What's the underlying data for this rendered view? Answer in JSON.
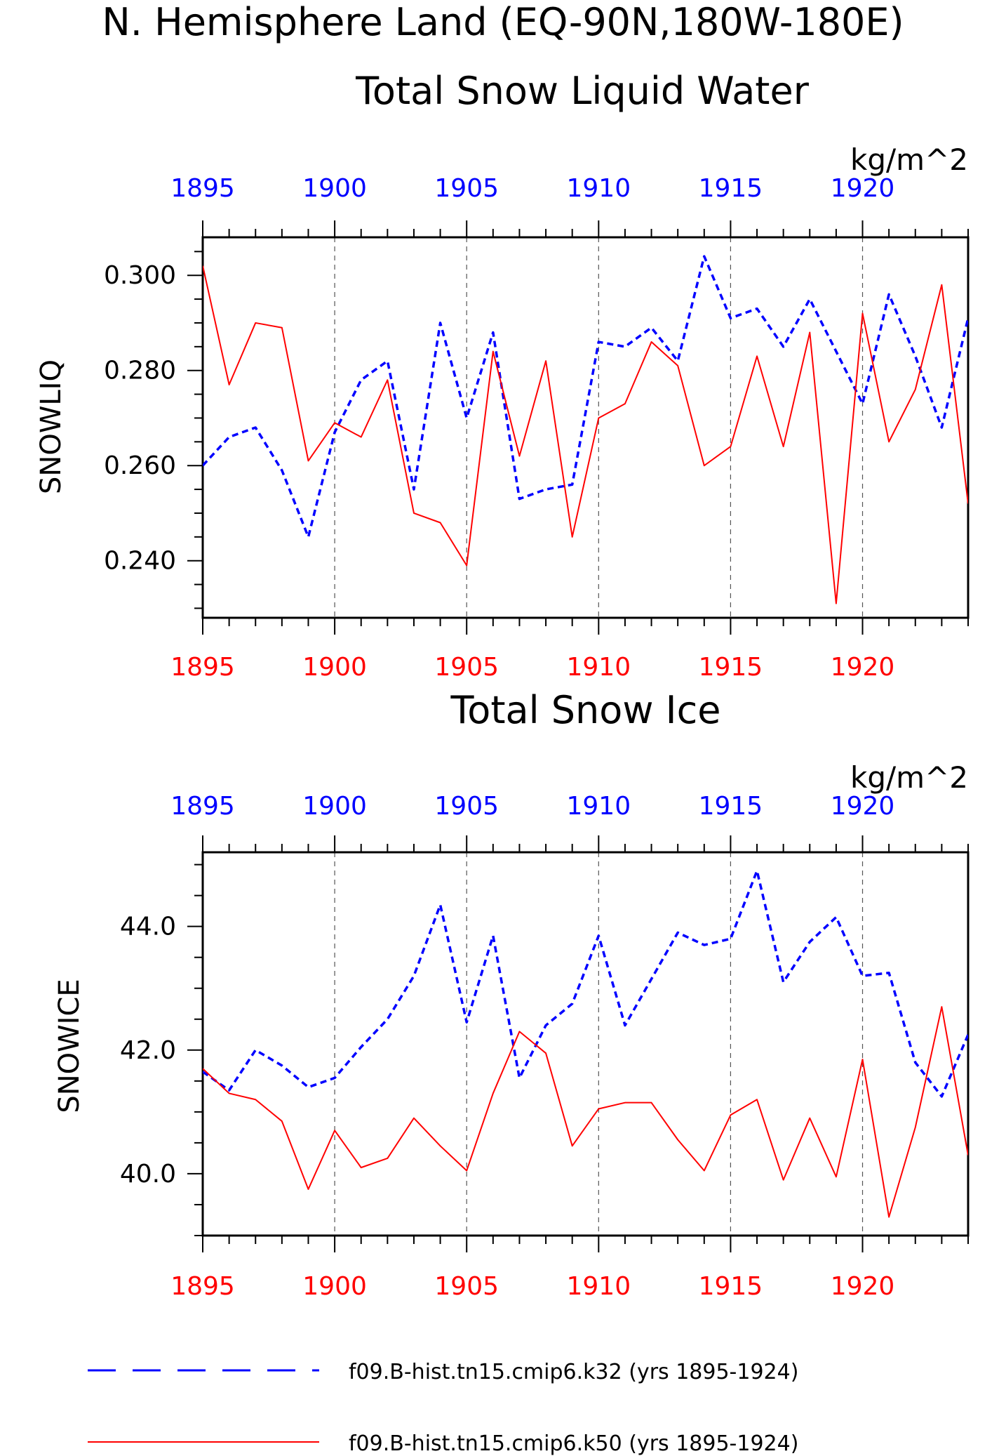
{
  "figure": {
    "title_line1": "N. Hemisphere Land (EQ-90N,180W-180E)"
  },
  "colors": {
    "series1": "#0000ff",
    "series2": "#ff0000",
    "axis": "#000000",
    "grid": "#555555"
  },
  "legend": {
    "entries": [
      {
        "label": "f09.B-hist.tn15.cmip6.k32 (yrs 1895-1924)",
        "color": "#0000ff",
        "style": "dashed"
      },
      {
        "label": "f09.B-hist.tn15.cmip6.k50 (yrs 1895-1924)",
        "color": "#ff0000",
        "style": "solid"
      }
    ]
  },
  "chart_data": [
    {
      "type": "line",
      "title": "Total Snow Liquid Water",
      "units": "kg/m^2",
      "ylabel": "SNOWLIQ",
      "xlim": [
        1895,
        1924
      ],
      "ylim": [
        0.228,
        0.308
      ],
      "yticks": [
        "0.240",
        "0.260",
        "0.280",
        "0.300"
      ],
      "yticks_values": [
        0.24,
        0.26,
        0.28,
        0.3
      ],
      "xticks_top": [
        "1895",
        "1900",
        "1905",
        "1910",
        "1915",
        "1920"
      ],
      "xticks_bottom": [
        "1895",
        "1900",
        "1905",
        "1910",
        "1915",
        "1920"
      ],
      "xticks_values": [
        1895,
        1900,
        1905,
        1910,
        1915,
        1920
      ],
      "grid": "vertical dashed at major x ticks",
      "x": [
        1895,
        1896,
        1897,
        1898,
        1899,
        1900,
        1901,
        1902,
        1903,
        1904,
        1905,
        1906,
        1907,
        1908,
        1909,
        1910,
        1911,
        1912,
        1913,
        1914,
        1915,
        1916,
        1917,
        1918,
        1919,
        1920,
        1921,
        1922,
        1923,
        1924
      ],
      "series": [
        {
          "values": [
            0.26,
            0.266,
            0.268,
            0.259,
            0.245,
            0.267,
            0.278,
            0.282,
            0.255,
            0.29,
            0.27,
            0.288,
            0.253,
            0.255,
            0.256,
            0.286,
            0.285,
            0.289,
            0.282,
            0.304,
            0.291,
            0.293,
            0.285,
            0.295,
            0.284,
            0.273,
            0.296,
            0.283,
            0.268,
            0.291
          ]
        },
        {
          "values": [
            0.302,
            0.277,
            0.29,
            0.289,
            0.261,
            0.269,
            0.266,
            0.278,
            0.25,
            0.248,
            0.239,
            0.284,
            0.262,
            0.282,
            0.245,
            0.27,
            0.273,
            0.286,
            0.281,
            0.26,
            0.264,
            0.283,
            0.264,
            0.288,
            0.231,
            0.292,
            0.265,
            0.276,
            0.298,
            0.252
          ]
        }
      ]
    },
    {
      "type": "line",
      "title": "Total Snow Ice",
      "units": "kg/m^2",
      "ylabel": "SNOWICE",
      "xlim": [
        1895,
        1924
      ],
      "ylim": [
        39.0,
        45.2
      ],
      "yticks": [
        "40.0",
        "42.0",
        "44.0"
      ],
      "yticks_values": [
        40.0,
        42.0,
        44.0
      ],
      "xticks_top": [
        "1895",
        "1900",
        "1905",
        "1910",
        "1915",
        "1920"
      ],
      "xticks_bottom": [
        "1895",
        "1900",
        "1905",
        "1910",
        "1915",
        "1920"
      ],
      "xticks_values": [
        1895,
        1900,
        1905,
        1910,
        1915,
        1920
      ],
      "grid": "vertical dashed at major x ticks",
      "x": [
        1895,
        1896,
        1897,
        1898,
        1899,
        1900,
        1901,
        1902,
        1903,
        1904,
        1905,
        1906,
        1907,
        1908,
        1909,
        1910,
        1911,
        1912,
        1913,
        1914,
        1915,
        1916,
        1917,
        1918,
        1919,
        1920,
        1921,
        1922,
        1923,
        1924
      ],
      "series": [
        {
          "values": [
            41.65,
            41.35,
            42.0,
            41.75,
            41.4,
            41.55,
            42.05,
            42.5,
            43.2,
            44.35,
            42.45,
            43.85,
            41.55,
            42.4,
            42.75,
            43.85,
            42.4,
            43.15,
            43.9,
            43.7,
            43.8,
            44.9,
            43.1,
            43.75,
            44.15,
            43.2,
            43.25,
            41.8,
            41.25,
            42.25
          ]
        },
        {
          "values": [
            41.7,
            41.3,
            41.2,
            40.85,
            39.75,
            40.7,
            40.1,
            40.25,
            40.9,
            40.45,
            40.05,
            41.3,
            42.3,
            41.95,
            40.45,
            41.05,
            41.15,
            41.15,
            40.55,
            40.05,
            40.95,
            41.2,
            39.9,
            40.9,
            39.95,
            41.85,
            39.3,
            40.75,
            42.7,
            40.3
          ]
        }
      ]
    }
  ]
}
